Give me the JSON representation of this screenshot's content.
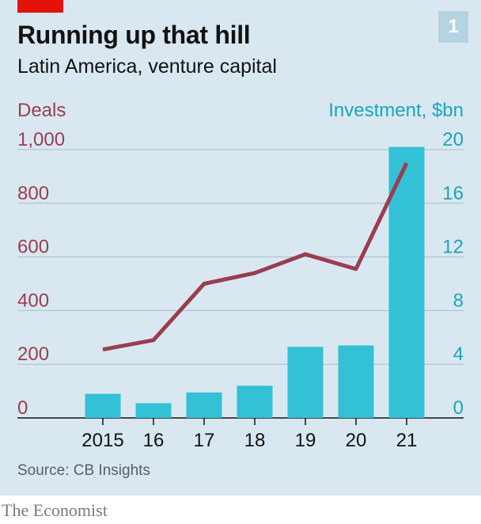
{
  "header": {
    "title": "Running up that hill",
    "subtitle": "Latin America, venture capital",
    "chart_number": "1"
  },
  "footer": {
    "source": "Source: CB Insights",
    "publisher": "The Economist"
  },
  "colors": {
    "bars": "#33c1d5",
    "line": "#9b3d50",
    "grid": "#a9bcc8",
    "axis": "#121212",
    "left_axis_text": "#9b3d50",
    "right_axis_text": "#1ba5bb"
  },
  "chart_data": {
    "type": "bar",
    "categories": [
      "2015",
      "16",
      "17",
      "18",
      "19",
      "20",
      "21"
    ],
    "series": [
      {
        "name": "Investment, $bn",
        "type": "bar",
        "axis": "right",
        "values": [
          1.8,
          1.1,
          1.9,
          2.4,
          5.3,
          5.4,
          20.2
        ]
      },
      {
        "name": "Deals",
        "type": "line",
        "axis": "left",
        "values": [
          255,
          290,
          500,
          540,
          610,
          555,
          950
        ]
      }
    ],
    "left_axis": {
      "label": "Deals",
      "range": [
        0,
        1000
      ],
      "ticks": [
        "0",
        "200",
        "400",
        "600",
        "800",
        "1,000"
      ]
    },
    "right_axis": {
      "label": "Investment, $bn",
      "range": [
        0,
        20
      ],
      "ticks": [
        "0",
        "4",
        "8",
        "12",
        "16",
        "20"
      ]
    },
    "grid": true
  }
}
